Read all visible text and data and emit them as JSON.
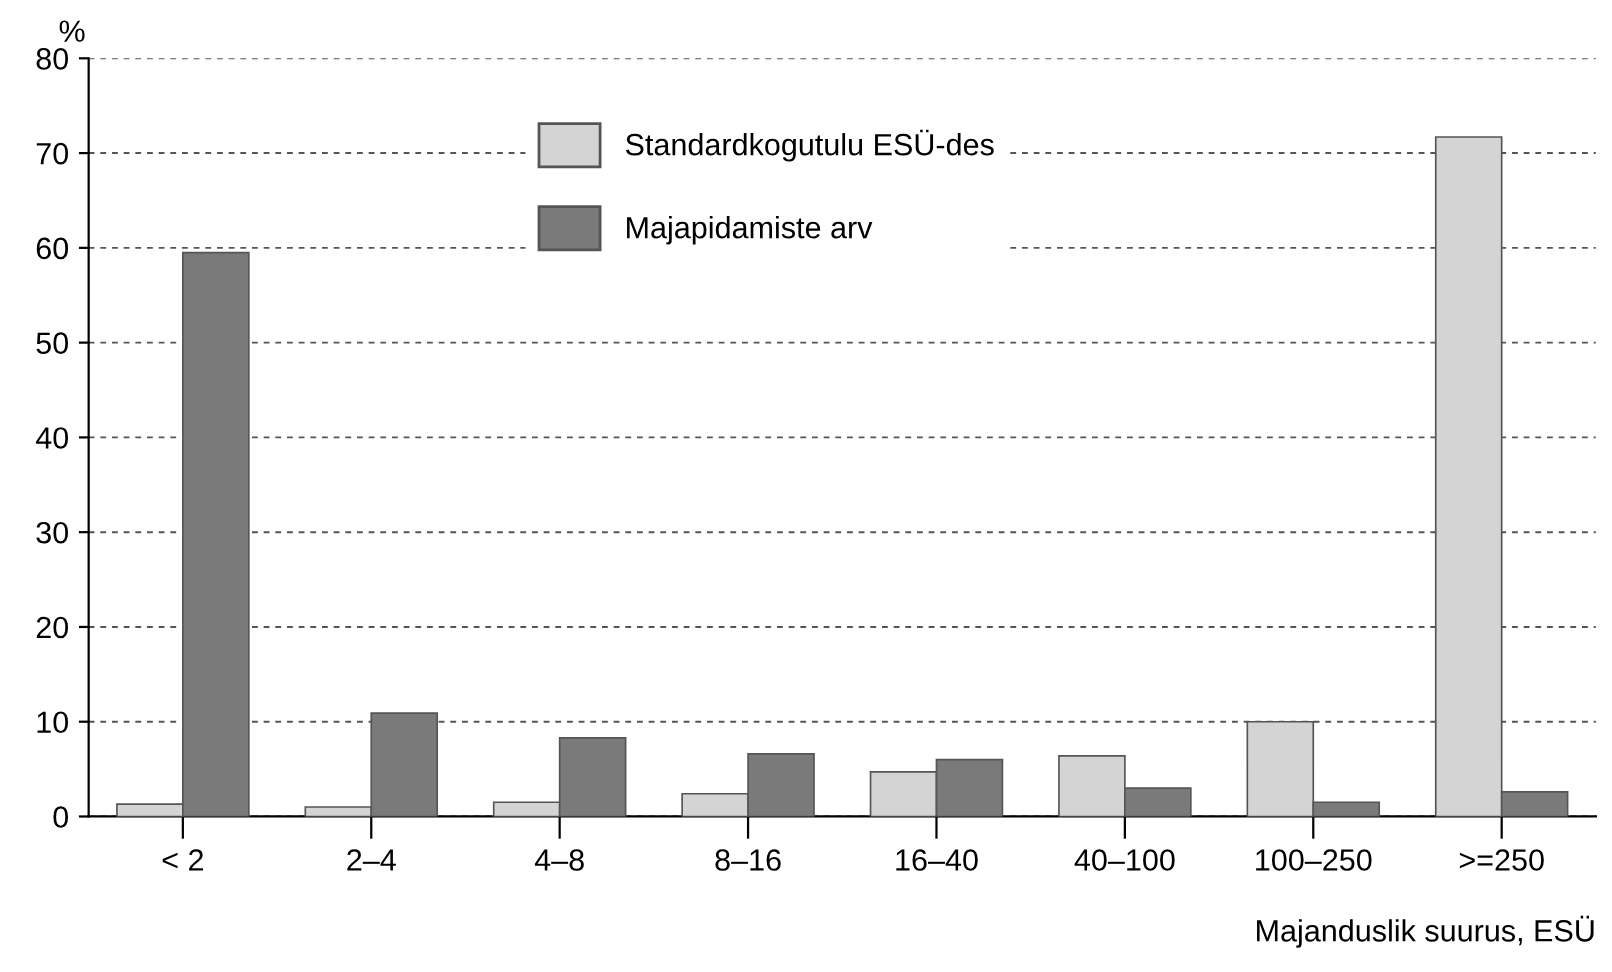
{
  "chart_data": {
    "type": "bar",
    "categories": [
      "< 2",
      "2–4",
      "4–8",
      "8–16",
      "16–40",
      "40–100",
      "100–250",
      ">=250"
    ],
    "series": [
      {
        "name": "Standardkogutulu ESÜ-des",
        "color": "#d4d4d4",
        "values": [
          1.3,
          1.0,
          1.5,
          2.4,
          4.7,
          6.4,
          10.0,
          71.7
        ]
      },
      {
        "name": "Majapidamiste arv",
        "color": "#7a7a7a",
        "values": [
          59.5,
          10.9,
          8.3,
          6.6,
          6.0,
          3.0,
          1.5,
          2.6
        ]
      }
    ],
    "ylabel": "%",
    "xlabel": "Majanduslik suurus, ESÜ",
    "ylim": [
      0,
      80
    ],
    "yticks": [
      0,
      10,
      20,
      30,
      40,
      50,
      60,
      70,
      80
    ],
    "grid": "y",
    "legend": "top"
  }
}
